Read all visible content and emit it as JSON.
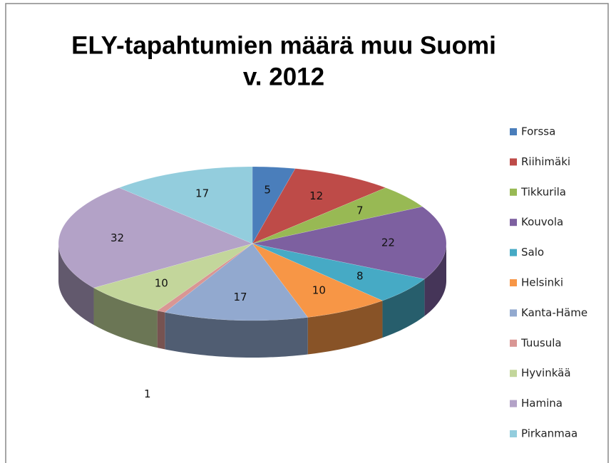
{
  "chart_data": {
    "type": "pie3d",
    "title": "ELY-tapahtumien määrä muu Suomi",
    "subtitle": "v. 2012",
    "categories": [
      "Forssa",
      "Riihimäki",
      "Tikkurila",
      "Kouvola",
      "Salo",
      "Helsinki",
      "Kanta-Häme",
      "Tuusula",
      "Hyvinkää",
      "Hamina",
      "Pirkanmaa"
    ],
    "values": [
      5,
      12,
      7,
      22,
      8,
      10,
      17,
      1,
      10,
      32,
      17
    ],
    "colors": [
      "#4a7ebb",
      "#be4b48",
      "#98b954",
      "#7d60a0",
      "#46aac5",
      "#f79646",
      "#92a9cf",
      "#d99694",
      "#c3d69b",
      "#b3a2c7",
      "#93cddd"
    ],
    "legend": "right"
  }
}
